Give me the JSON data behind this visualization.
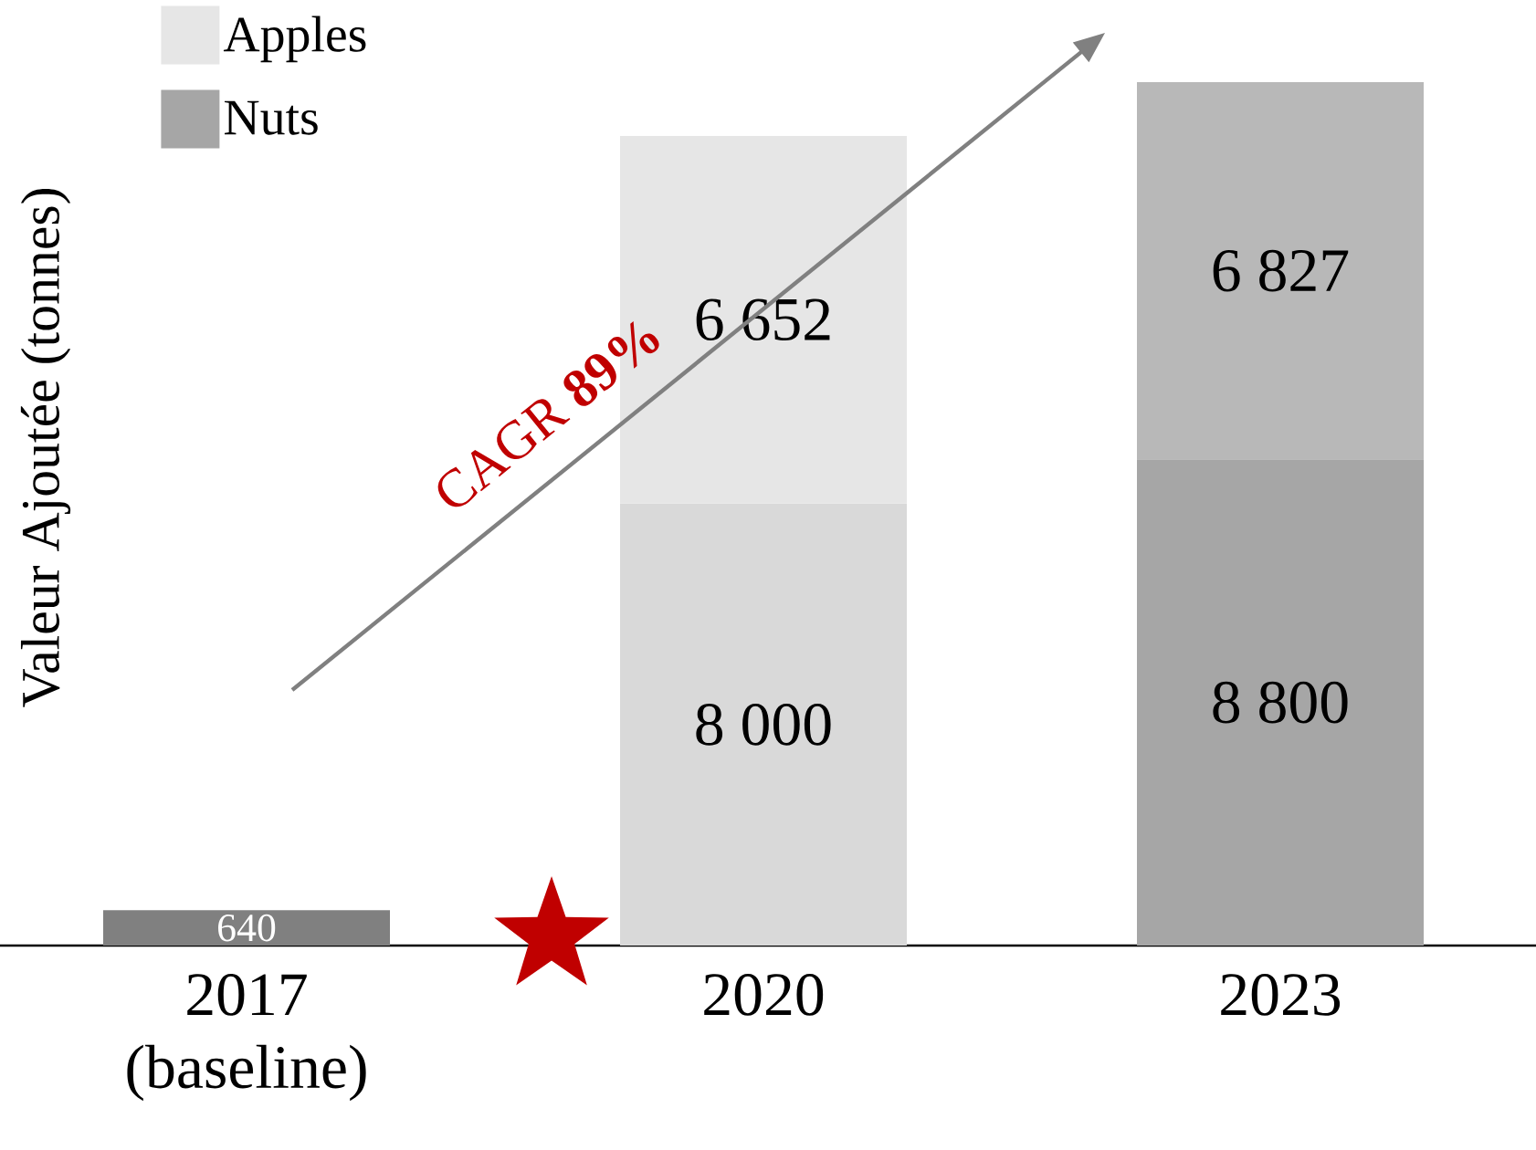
{
  "chart_data": {
    "type": "bar",
    "stacked": true,
    "ylabel": "Valeur Ajoutée (tonnes)",
    "categories": [
      "2017 (baseline)",
      "2020",
      "2023"
    ],
    "series": [
      {
        "name": "Nuts",
        "color": "#a6a6a6",
        "colors": [
          "#808080",
          "#d9d9d9",
          "#a6a6a6"
        ],
        "values": [
          640,
          8000,
          8800
        ],
        "value_labels": [
          "640",
          "8 000",
          "8 800"
        ]
      },
      {
        "name": "Apples",
        "color": "#e6e6e6",
        "colors": [
          "#808080",
          "#e6e6e6",
          "#b8b8b8"
        ],
        "values": [
          null,
          6652,
          6827
        ],
        "value_labels": [
          null,
          "6 652",
          "6 827"
        ]
      }
    ],
    "legend": "top left",
    "annotations": [
      "CAGR **89%**"
    ]
  }
}
